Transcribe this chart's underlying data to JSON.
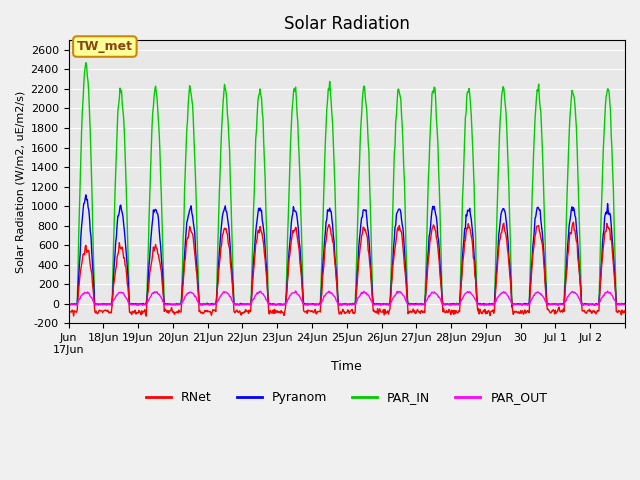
{
  "title": "Solar Radiation",
  "ylabel": "Solar Radiation (W/m2, uE/m2/s)",
  "xlabel": "Time",
  "ylim": [
    -200,
    2700
  ],
  "yticks": [
    -200,
    0,
    200,
    400,
    600,
    800,
    1000,
    1200,
    1400,
    1600,
    1800,
    2000,
    2200,
    2400,
    2600
  ],
  "fig_bg_color": "#f0f0f0",
  "plot_bg_color": "#e8e8e8",
  "legend_labels": [
    "RNet",
    "Pyranom",
    "PAR_IN",
    "PAR_OUT"
  ],
  "legend_colors": [
    "#ff0000",
    "#0000ff",
    "#00cc00",
    "#ff00ff"
  ],
  "annotation_text": "TW_met",
  "annotation_color": "#8b4513",
  "annotation_bg": "#ffff99",
  "annotation_border": "#cc8800",
  "n_days": 16,
  "line_width": 1.0,
  "grid_color": "#ffffff",
  "title_fontsize": 12,
  "tick_labels": [
    "Jun\n17Jun",
    "18Jun",
    "19Jun",
    "20Jun",
    "21Jun",
    "22Jun",
    "23Jun",
    "24Jun",
    "25Jun",
    "26Jun",
    "27Jun",
    "28Jun",
    "29Jun",
    "30",
    "Jul 1",
    "Jul 2",
    ""
  ]
}
